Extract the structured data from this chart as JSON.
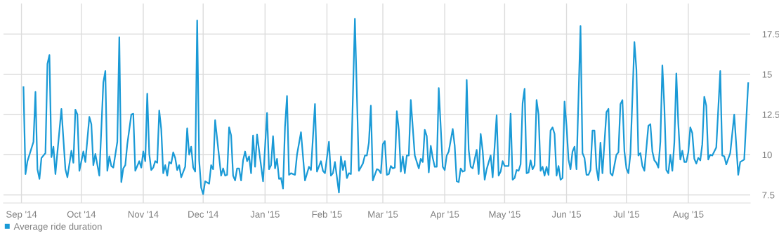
{
  "chart_data": {
    "type": "line",
    "series": [
      {
        "name": "Average ride duration",
        "color": "#1a9ad6",
        "x": [
          "2014-09-02",
          "2014-09-03",
          "2014-09-04",
          "2014-09-07",
          "2014-09-08",
          "2014-09-09",
          "2014-09-10",
          "2014-09-11",
          "2014-09-13",
          "2014-09-14",
          "2014-09-15",
          "2014-09-16",
          "2014-09-17",
          "2014-09-18",
          "2014-09-21",
          "2014-09-23",
          "2014-09-24",
          "2014-09-26",
          "2014-09-27",
          "2014-09-28",
          "2014-09-29",
          "2014-09-30",
          "2014-10-02",
          "2014-10-03",
          "2014-10-05",
          "2014-10-06",
          "2014-10-07",
          "2014-10-08",
          "2014-10-10",
          "2014-10-12",
          "2014-10-13",
          "2014-10-14",
          "2014-10-15",
          "2014-10-16",
          "2014-10-17",
          "2014-10-19",
          "2014-10-20",
          "2014-10-21",
          "2014-10-22",
          "2014-10-23",
          "2014-10-24",
          "2014-10-26",
          "2014-10-27",
          "2014-10-28",
          "2014-10-30",
          "2014-10-31",
          "2014-11-01",
          "2014-11-02",
          "2014-11-03",
          "2014-11-04",
          "2014-11-05",
          "2014-11-06",
          "2014-11-07",
          "2014-11-08",
          "2014-11-09",
          "2014-11-10",
          "2014-11-11",
          "2014-11-12",
          "2014-11-13",
          "2014-11-14",
          "2014-11-15",
          "2014-11-16",
          "2014-11-17",
          "2014-11-18",
          "2014-11-19",
          "2014-11-20",
          "2014-11-22",
          "2014-11-23",
          "2014-11-24",
          "2014-11-25",
          "2014-11-26",
          "2014-11-27",
          "2014-11-28",
          "2014-11-29",
          "2014-11-30",
          "2014-12-01",
          "2014-12-02",
          "2014-12-04",
          "2014-12-05",
          "2014-12-06",
          "2014-12-07",
          "2014-12-10",
          "2014-12-11",
          "2014-12-12",
          "2014-12-13",
          "2014-12-14",
          "2014-12-15",
          "2014-12-16",
          "2014-12-17",
          "2014-12-18",
          "2014-12-19",
          "2014-12-20",
          "2014-12-21",
          "2014-12-22",
          "2014-12-23",
          "2014-12-24",
          "2014-12-25",
          "2014-12-26",
          "2014-12-27",
          "2014-12-28",
          "2014-12-31",
          "2015-01-02",
          "2015-01-03",
          "2015-01-04",
          "2015-01-05",
          "2015-01-06",
          "2015-01-07",
          "2015-01-08",
          "2015-01-09",
          "2015-01-10",
          "2015-01-11",
          "2015-01-12",
          "2015-01-13",
          "2015-01-14",
          "2015-01-16",
          "2015-01-17",
          "2015-01-19",
          "2015-01-21",
          "2015-01-23",
          "2015-01-24",
          "2015-01-26",
          "2015-01-27",
          "2015-01-29",
          "2015-01-30",
          "2015-01-31",
          "2015-02-02",
          "2015-02-03",
          "2015-02-04",
          "2015-02-05",
          "2015-02-07",
          "2015-02-08",
          "2015-02-09",
          "2015-02-10",
          "2015-02-11",
          "2015-02-12",
          "2015-02-13",
          "2015-02-15",
          "2015-02-17",
          "2015-02-19",
          "2015-02-20",
          "2015-02-21",
          "2015-02-22",
          "2015-02-23",
          "2015-02-24",
          "2015-02-26",
          "2015-02-27",
          "2015-02-28",
          "2015-03-01",
          "2015-03-02",
          "2015-03-03",
          "2015-03-04",
          "2015-03-05",
          "2015-03-06",
          "2015-03-07",
          "2015-03-08",
          "2015-03-09",
          "2015-03-10",
          "2015-03-11",
          "2015-03-12",
          "2015-03-13",
          "2015-03-14",
          "2015-03-15",
          "2015-03-17",
          "2015-03-19",
          "2015-03-20",
          "2015-03-21",
          "2015-03-22",
          "2015-03-23",
          "2015-03-24",
          "2015-03-25",
          "2015-03-26",
          "2015-03-27",
          "2015-03-28",
          "2015-03-29",
          "2015-03-31",
          "2015-04-01",
          "2015-04-02",
          "2015-04-03",
          "2015-04-05",
          "2015-04-06",
          "2015-04-07",
          "2015-04-08",
          "2015-04-09",
          "2015-04-10",
          "2015-04-11",
          "2015-04-12",
          "2015-04-13",
          "2015-04-14",
          "2015-04-15",
          "2015-04-17",
          "2015-04-18",
          "2015-04-19",
          "2015-04-20",
          "2015-04-21",
          "2015-04-22",
          "2015-04-24",
          "2015-04-25",
          "2015-04-27",
          "2015-04-28",
          "2015-04-29",
          "2015-04-30",
          "2015-05-01",
          "2015-05-03",
          "2015-05-04",
          "2015-05-05",
          "2015-05-06",
          "2015-05-07",
          "2015-05-08",
          "2015-05-09",
          "2015-05-10",
          "2015-05-11",
          "2015-05-12",
          "2015-05-13",
          "2015-05-14",
          "2015-05-15",
          "2015-05-16",
          "2015-05-17",
          "2015-05-18",
          "2015-05-19",
          "2015-05-20",
          "2015-05-21",
          "2015-05-22",
          "2015-05-23",
          "2015-05-24",
          "2015-05-25",
          "2015-05-26",
          "2015-05-27",
          "2015-05-28",
          "2015-05-29",
          "2015-05-30",
          "2015-05-31",
          "2015-06-01",
          "2015-06-02",
          "2015-06-03",
          "2015-06-04",
          "2015-06-05",
          "2015-06-06",
          "2015-06-08",
          "2015-06-09",
          "2015-06-10",
          "2015-06-11",
          "2015-06-12",
          "2015-06-13",
          "2015-06-14",
          "2015-06-15",
          "2015-06-16",
          "2015-06-17",
          "2015-06-18",
          "2015-06-19",
          "2015-06-21",
          "2015-06-22",
          "2015-06-23",
          "2015-06-24",
          "2015-06-26",
          "2015-06-27",
          "2015-06-28",
          "2015-06-29",
          "2015-06-30",
          "2015-07-01",
          "2015-07-02",
          "2015-07-03",
          "2015-07-05",
          "2015-07-06",
          "2015-07-07",
          "2015-07-08",
          "2015-07-09",
          "2015-07-10",
          "2015-07-12",
          "2015-07-13",
          "2015-07-14",
          "2015-07-15",
          "2015-07-16",
          "2015-07-17",
          "2015-07-18",
          "2015-07-19",
          "2015-07-20",
          "2015-07-21",
          "2015-07-22",
          "2015-07-23",
          "2015-07-24",
          "2015-07-25",
          "2015-07-26",
          "2015-07-27",
          "2015-07-28",
          "2015-07-29",
          "2015-07-30",
          "2015-07-31",
          "2015-08-01",
          "2015-08-02",
          "2015-08-03",
          "2015-08-04",
          "2015-08-05",
          "2015-08-06",
          "2015-08-07",
          "2015-08-08",
          "2015-08-09",
          "2015-08-10",
          "2015-08-11",
          "2015-08-12",
          "2015-08-13",
          "2015-08-15",
          "2015-08-17",
          "2015-08-18",
          "2015-08-19",
          "2015-08-20",
          "2015-08-22",
          "2015-08-24",
          "2015-08-26",
          "2015-08-27",
          "2015-08-29",
          "2015-08-31"
        ],
        "values": [
          14.2,
          8.8,
          9.6,
          10.8,
          13.9,
          9.1,
          8.5,
          9.8,
          10.1,
          15.65,
          16.2,
          9.85,
          10.5,
          8.8,
          12.85,
          9.1,
          8.6,
          10.25,
          9.5,
          12.8,
          12.5,
          9.0,
          10.2,
          9.55,
          12.35,
          11.9,
          9.35,
          10.05,
          8.7,
          14.5,
          15.2,
          9.0,
          9.9,
          9.3,
          9.2,
          10.8,
          17.3,
          8.3,
          9.15,
          9.35,
          10.65,
          12.5,
          12.55,
          9.0,
          9.6,
          9.2,
          10.2,
          9.6,
          13.8,
          10.05,
          9.05,
          9.2,
          9.6,
          9.5,
          12.75,
          11.6,
          8.85,
          9.35,
          8.7,
          9.55,
          9.45,
          10.15,
          9.8,
          9.05,
          9.35,
          8.6,
          9.25,
          11.65,
          10.0,
          10.5,
          9.2,
          8.95,
          18.35,
          9.65,
          7.95,
          7.55,
          8.35,
          8.2,
          9.35,
          9.1,
          12.15,
          8.7,
          9.15,
          8.7,
          8.75,
          11.7,
          11.2,
          8.7,
          8.4,
          9.15,
          9.15,
          8.4,
          9.65,
          10.2,
          9.6,
          9.9,
          8.85,
          11.2,
          9.25,
          11.25,
          8.35,
          12.6,
          9.1,
          9.35,
          11.15,
          9.15,
          9.75,
          8.5,
          8.55,
          7.9,
          11.75,
          13.65,
          8.75,
          8.85,
          8.75,
          10.0,
          11.4,
          8.4,
          9.25,
          9.05,
          13.15,
          8.95,
          9.6,
          9.0,
          8.85,
          10.8,
          8.7,
          8.85,
          9.55,
          7.65,
          9.9,
          9.05,
          9.6,
          8.55,
          8.85,
          8.8,
          18.45,
          9.0,
          9.45,
          9.95,
          9.95,
          10.75,
          13.05,
          8.4,
          9.1,
          9.05,
          8.85,
          10.65,
          10.85,
          8.75,
          8.8,
          9.3,
          9.15,
          9.2,
          12.7,
          11.55,
          8.95,
          9.9,
          8.85,
          9.95,
          9.95,
          13.4,
          9.95,
          9.15,
          9.75,
          9.55,
          11.55,
          11.15,
          8.9,
          10.55,
          9.8,
          9.25,
          9.25,
          14.15,
          9.25,
          9.05,
          9.95,
          10.2,
          11.6,
          10.55,
          8.35,
          8.3,
          9.15,
          8.95,
          9.0,
          14.65,
          10.3,
          9.25,
          9.15,
          10.3,
          8.8,
          11.3,
          10.25,
          8.45,
          9.1,
          9.95,
          8.6,
          12.45,
          8.7,
          8.95,
          9.6,
          9.3,
          9.3,
          12.55,
          8.45,
          8.55,
          9.05,
          9.0,
          9.4,
          13.2,
          14.1,
          8.85,
          8.9,
          9.65,
          9.1,
          9.35,
          13.4,
          12.5,
          9.0,
          9.25,
          8.7,
          9.25,
          8.75,
          11.5,
          11.7,
          11.3,
          8.7,
          9.3,
          8.45,
          8.55,
          13.3,
          11.8,
          9.7,
          9.1,
          10.2,
          10.5,
          9.1,
          18.0,
          10.1,
          9.8,
          8.75,
          8.75,
          9.05,
          11.5,
          11.5,
          9.15,
          8.4,
          10.75,
          8.85,
          12.65,
          12.85,
          8.85,
          8.7,
          10.0,
          10.15,
          13.15,
          13.4,
          10.2,
          9.15,
          8.85,
          10.05,
          17.0,
          15.3,
          9.95,
          10.1,
          9.3,
          9.0,
          11.8,
          11.9,
          10.2,
          9.65,
          9.5,
          9.2,
          10.8,
          15.55,
          13.0,
          9.05,
          8.85,
          10.0,
          9.0,
          10.75,
          15.05,
          11.9,
          9.7,
          10.25,
          9.55,
          9.55,
          10.15,
          11.7,
          11.35,
          9.75,
          9.45,
          9.8,
          9.65,
          10.65,
          13.6,
          13.05,
          9.7,
          10.0,
          9.95,
          10.45,
          15.2,
          9.95,
          9.9,
          9.4,
          10.1,
          12.5,
          8.75,
          9.55,
          9.7,
          14.45
        ]
      }
    ],
    "xlim": [
      "2014-08-23",
      "2015-09-01"
    ],
    "xticks": [
      {
        "value": "2014-09-01",
        "label": "Sep '14"
      },
      {
        "value": "2014-10-01",
        "label": "Oct '14"
      },
      {
        "value": "2014-11-01",
        "label": "Nov '14"
      },
      {
        "value": "2014-12-01",
        "label": "Dec '14"
      },
      {
        "value": "2015-01-01",
        "label": "Jan '15"
      },
      {
        "value": "2015-02-01",
        "label": "Feb '15"
      },
      {
        "value": "2015-03-01",
        "label": "Mar '15"
      },
      {
        "value": "2015-04-01",
        "label": "Apr '15"
      },
      {
        "value": "2015-05-01",
        "label": "May '15"
      },
      {
        "value": "2015-06-01",
        "label": "Jun '15"
      },
      {
        "value": "2015-07-01",
        "label": "Jul '15"
      },
      {
        "value": "2015-08-01",
        "label": "Aug '15"
      }
    ],
    "ylim": [
      7,
      19.4
    ],
    "yticks": [
      7.5,
      10,
      12.5,
      15,
      17.5
    ],
    "grid": true,
    "legend": "bottom left",
    "marker": "none",
    "line_style": "solid"
  }
}
